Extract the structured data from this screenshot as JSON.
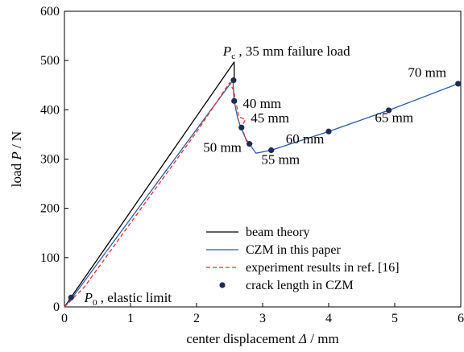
{
  "chart_data": {
    "type": "line",
    "xlabel": "center displacement Δ / mm",
    "xlabel_parts": [
      "center displacement ",
      "Δ",
      " / mm"
    ],
    "ylabel": "load P / N",
    "ylabel_parts": [
      "load ",
      "P",
      " / N"
    ],
    "xlim": [
      0,
      6
    ],
    "ylim": [
      0,
      600
    ],
    "x_ticks": [
      0,
      1,
      2,
      3,
      4,
      5,
      6
    ],
    "y_ticks": [
      0,
      100,
      200,
      300,
      400,
      500,
      600
    ],
    "grid": false,
    "legend_position": "bottom-right",
    "series": [
      {
        "name": "beam theory",
        "style": "solid",
        "color": "#000000",
        "x": [
          0,
          2.57,
          2.57
        ],
        "y": [
          0,
          497,
          460
        ]
      },
      {
        "name": "CZM in this paper",
        "style": "solid",
        "color": "#2d5ba8",
        "x": [
          0,
          0.12,
          2.55,
          2.57,
          2.62,
          2.67,
          2.75,
          2.9,
          3.13,
          4.0,
          4.91,
          5.96
        ],
        "y": [
          0,
          19,
          460,
          418,
          385,
          364,
          340,
          312,
          318,
          356,
          399,
          453
        ]
      },
      {
        "name": "experiment results in ref. [16]",
        "style": "dashed",
        "color": "#e03030",
        "x": [
          0,
          0.3,
          1.0,
          2.0,
          2.5,
          2.56,
          2.64,
          2.74,
          2.68,
          2.76,
          2.86
        ],
        "y": [
          0,
          40,
          170,
          355,
          455,
          440,
          386,
          380,
          366,
          335,
          330
        ]
      },
      {
        "name": "crack length in CZM",
        "style": "markers",
        "color": "#1f2a55",
        "x": [
          0.1,
          2.56,
          2.57,
          2.68,
          2.8,
          3.13,
          4.0,
          4.91,
          5.96
        ],
        "y": [
          19,
          460,
          418,
          364,
          331,
          318,
          356,
          399,
          453
        ]
      }
    ],
    "annotations": [
      {
        "main": "P",
        "sub": "c",
        "rest": " , 35 mm failure load",
        "x": 2.4,
        "y": 510
      },
      {
        "main": "P",
        "sub": "0",
        "rest": " , elastic limit",
        "x": 0.3,
        "y": 10
      },
      {
        "text": "40 mm",
        "x": 2.7,
        "y": 404
      },
      {
        "text": "45 mm",
        "x": 2.82,
        "y": 374
      },
      {
        "text": "50 mm",
        "x": 2.1,
        "y": 315
      },
      {
        "text": "55 mm",
        "x": 2.98,
        "y": 290
      },
      {
        "text": "60 mm",
        "x": 3.35,
        "y": 332
      },
      {
        "text": "65 mm",
        "x": 4.7,
        "y": 375
      },
      {
        "text": "70 mm",
        "x": 5.2,
        "y": 467
      }
    ]
  }
}
